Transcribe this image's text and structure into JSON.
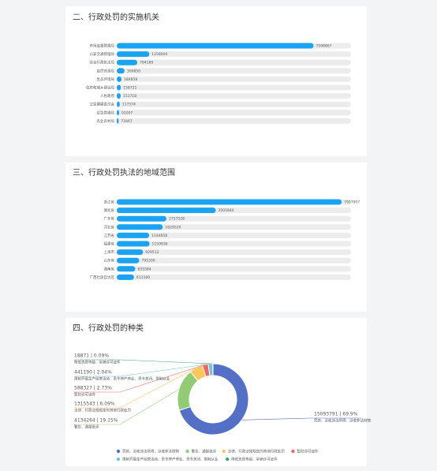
{
  "chart_data": [
    {
      "type": "hbar",
      "title": "二、行政处罚的实施机关",
      "color": "#1aa3f2",
      "categories": [
        "市场监督管理局",
        "公安交通管理局",
        "综合行政执法局",
        "自然资源局",
        "生态环境局",
        "住房和城乡建设局",
        "人民政府",
        "卫生健康委员会",
        "应急管理局",
        "农业农村局"
      ],
      "values": [
        7598867,
        1258004,
        794189,
        300850,
        184858,
        158721,
        151718,
        117574,
        91007,
        73467
      ]
    },
    {
      "type": "hbar",
      "title": "三、行政处罚执法的地域范围",
      "color": "#1aa3f2",
      "categories": [
        "浙江省",
        "湖北省",
        "广东省",
        "河北省",
        "江苏省",
        "福建省",
        "上海市",
        "山东省",
        "湖南省",
        "广西壮族自治区"
      ],
      "values": [
        7957907,
        3501844,
        1757528,
        1629520,
        1144858,
        1159836,
        929512,
        795330,
        655584,
        611100
      ]
    },
    {
      "type": "pie",
      "title": "四、行政处罚的种类",
      "categories": [
        "罚款、没收违法所得、没收非法财物",
        "警告、通报批评",
        "法律、行政法规规定的其他行政处罚",
        "暂扣许可证件",
        "限制开展生产经营活动、责令停产停业、责令关闭、限制从业",
        "降低资质等级、吊销许可证件"
      ],
      "values": [
        15093791,
        4134264,
        1315543,
        588327,
        441190,
        18871
      ],
      "value_labels": [
        "15093791 | 69.9%",
        "4134264 | 19.15%",
        "1315543 | 6.09%",
        "588327 | 2.73%",
        "441190 | 2.04%",
        "18871 | 0.09%"
      ],
      "colors": [
        "#5470c6",
        "#91cc75",
        "#fac858",
        "#ee6666",
        "#73c0de",
        "#3ba272"
      ]
    }
  ]
}
